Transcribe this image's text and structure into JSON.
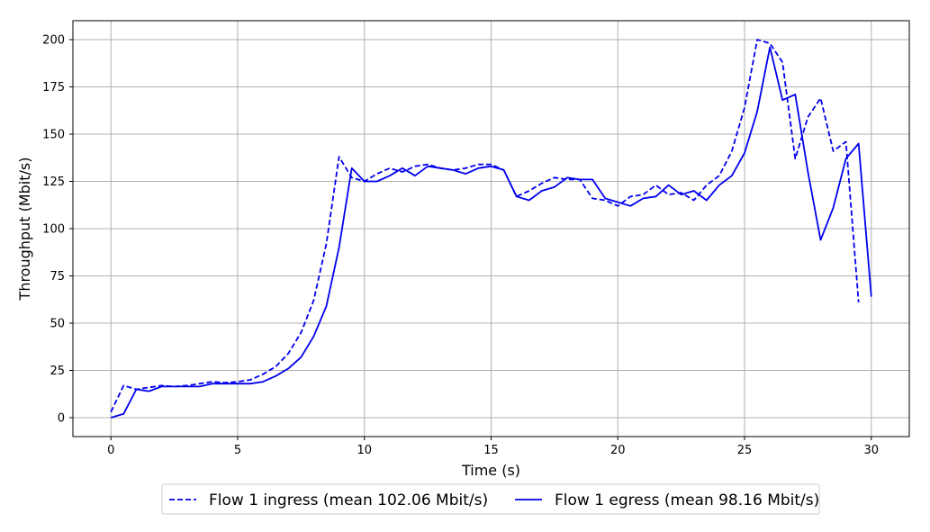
{
  "chart_data": {
    "type": "line",
    "xlabel": "Time (s)",
    "ylabel": "Throughput (Mbit/s)",
    "xlim": [
      -1.5,
      31.5
    ],
    "ylim": [
      -10,
      210
    ],
    "xticks": [
      0,
      5,
      10,
      15,
      20,
      25,
      30
    ],
    "yticks": [
      0,
      25,
      50,
      75,
      100,
      125,
      150,
      175,
      200
    ],
    "grid": true,
    "legend_position": "bottom-center",
    "series": [
      {
        "name": "Flow 1 ingress (mean 102.06 Mbit/s)",
        "color": "#0000ee",
        "style": "dashed",
        "x": [
          0,
          0.5,
          1,
          1.5,
          2,
          2.5,
          3,
          3.5,
          4,
          4.5,
          5,
          5.5,
          6,
          6.5,
          7,
          7.5,
          8,
          8.5,
          9,
          9.5,
          10,
          10.5,
          11,
          11.5,
          12,
          12.5,
          13,
          13.5,
          14,
          14.5,
          15,
          15.5,
          16,
          16.5,
          17,
          17.5,
          18,
          18.5,
          19,
          19.5,
          20,
          20.5,
          21,
          21.5,
          22,
          22.5,
          23,
          23.5,
          24,
          24.5,
          25,
          25.5,
          26,
          26.5,
          27,
          27.5,
          28,
          28.5,
          29,
          29.5
        ],
        "y": [
          3,
          17,
          15,
          16,
          17,
          16.5,
          17,
          18,
          19,
          18.5,
          19,
          20,
          23,
          27,
          34,
          45,
          62,
          92,
          138,
          127,
          125,
          129,
          132,
          130,
          133,
          134,
          132,
          131,
          132,
          134,
          134,
          131,
          117,
          120,
          124,
          127,
          126,
          126,
          116,
          115,
          112,
          117,
          118,
          123,
          118,
          119,
          115,
          123,
          128,
          141,
          164,
          200,
          198,
          188,
          137,
          159,
          169,
          141,
          146,
          61
        ]
      },
      {
        "name": "Flow 1 egress (mean 98.16 Mbit/s)",
        "color": "#0000ee",
        "style": "solid",
        "x": [
          0,
          0.5,
          1,
          1.5,
          2,
          2.5,
          3,
          3.5,
          4,
          4.5,
          5,
          5.5,
          6,
          6.5,
          7,
          7.5,
          8,
          8.5,
          9,
          9.5,
          10,
          10.5,
          11,
          11.5,
          12,
          12.5,
          13,
          13.5,
          14,
          14.5,
          15,
          15.5,
          16,
          16.5,
          17,
          17.5,
          18,
          18.5,
          19,
          19.5,
          20,
          20.5,
          21,
          21.5,
          22,
          22.5,
          23,
          23.5,
          24,
          24.5,
          25,
          25.5,
          26,
          26.5,
          27,
          27.5,
          28,
          28.5,
          29,
          29.5,
          30
        ],
        "y": [
          0,
          2,
          15,
          14,
          16.5,
          16.5,
          16.5,
          16.5,
          18,
          18,
          18,
          18,
          19,
          22,
          26,
          32,
          43,
          59,
          90,
          132,
          125,
          125,
          128,
          132,
          128,
          133,
          132,
          131,
          129,
          132,
          133,
          131,
          117,
          115,
          120,
          122,
          127,
          126,
          126,
          116,
          114,
          112,
          116,
          117,
          123,
          118,
          120,
          115,
          123,
          128,
          140,
          162,
          196,
          168,
          171,
          130,
          94,
          111,
          137,
          145,
          64
        ]
      }
    ]
  }
}
